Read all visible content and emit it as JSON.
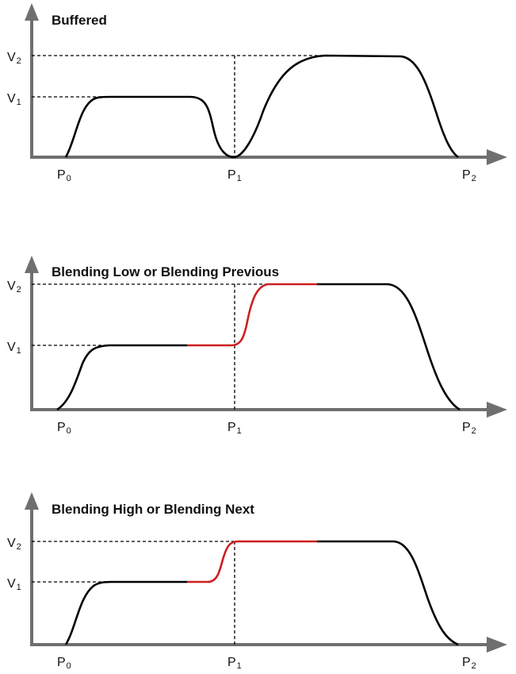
{
  "colors": {
    "axis": "#6f6f6f",
    "curve": "#000000",
    "highlight": "#cc1f1f",
    "guide": "#000000",
    "text": "#111111"
  },
  "panels": [
    {
      "title": "Buffered",
      "v_labels": [
        {
          "letter": "V",
          "sub": "2"
        },
        {
          "letter": "V",
          "sub": "1"
        }
      ],
      "p_labels": [
        {
          "letter": "P",
          "sub": "0"
        },
        {
          "letter": "P",
          "sub": "1"
        },
        {
          "letter": "P",
          "sub": "2"
        }
      ]
    },
    {
      "title": "Blending Low or Blending Previous",
      "v_labels": [
        {
          "letter": "V",
          "sub": "2"
        },
        {
          "letter": "V",
          "sub": "1"
        }
      ],
      "p_labels": [
        {
          "letter": "P",
          "sub": "0"
        },
        {
          "letter": "P",
          "sub": "1"
        },
        {
          "letter": "P",
          "sub": "2"
        }
      ]
    },
    {
      "title": "Blending High or Blending Next",
      "v_labels": [
        {
          "letter": "V",
          "sub": "2"
        },
        {
          "letter": "V",
          "sub": "1"
        }
      ],
      "p_labels": [
        {
          "letter": "P",
          "sub": "0"
        },
        {
          "letter": "P",
          "sub": "1"
        },
        {
          "letter": "P",
          "sub": "2"
        }
      ]
    }
  ]
}
